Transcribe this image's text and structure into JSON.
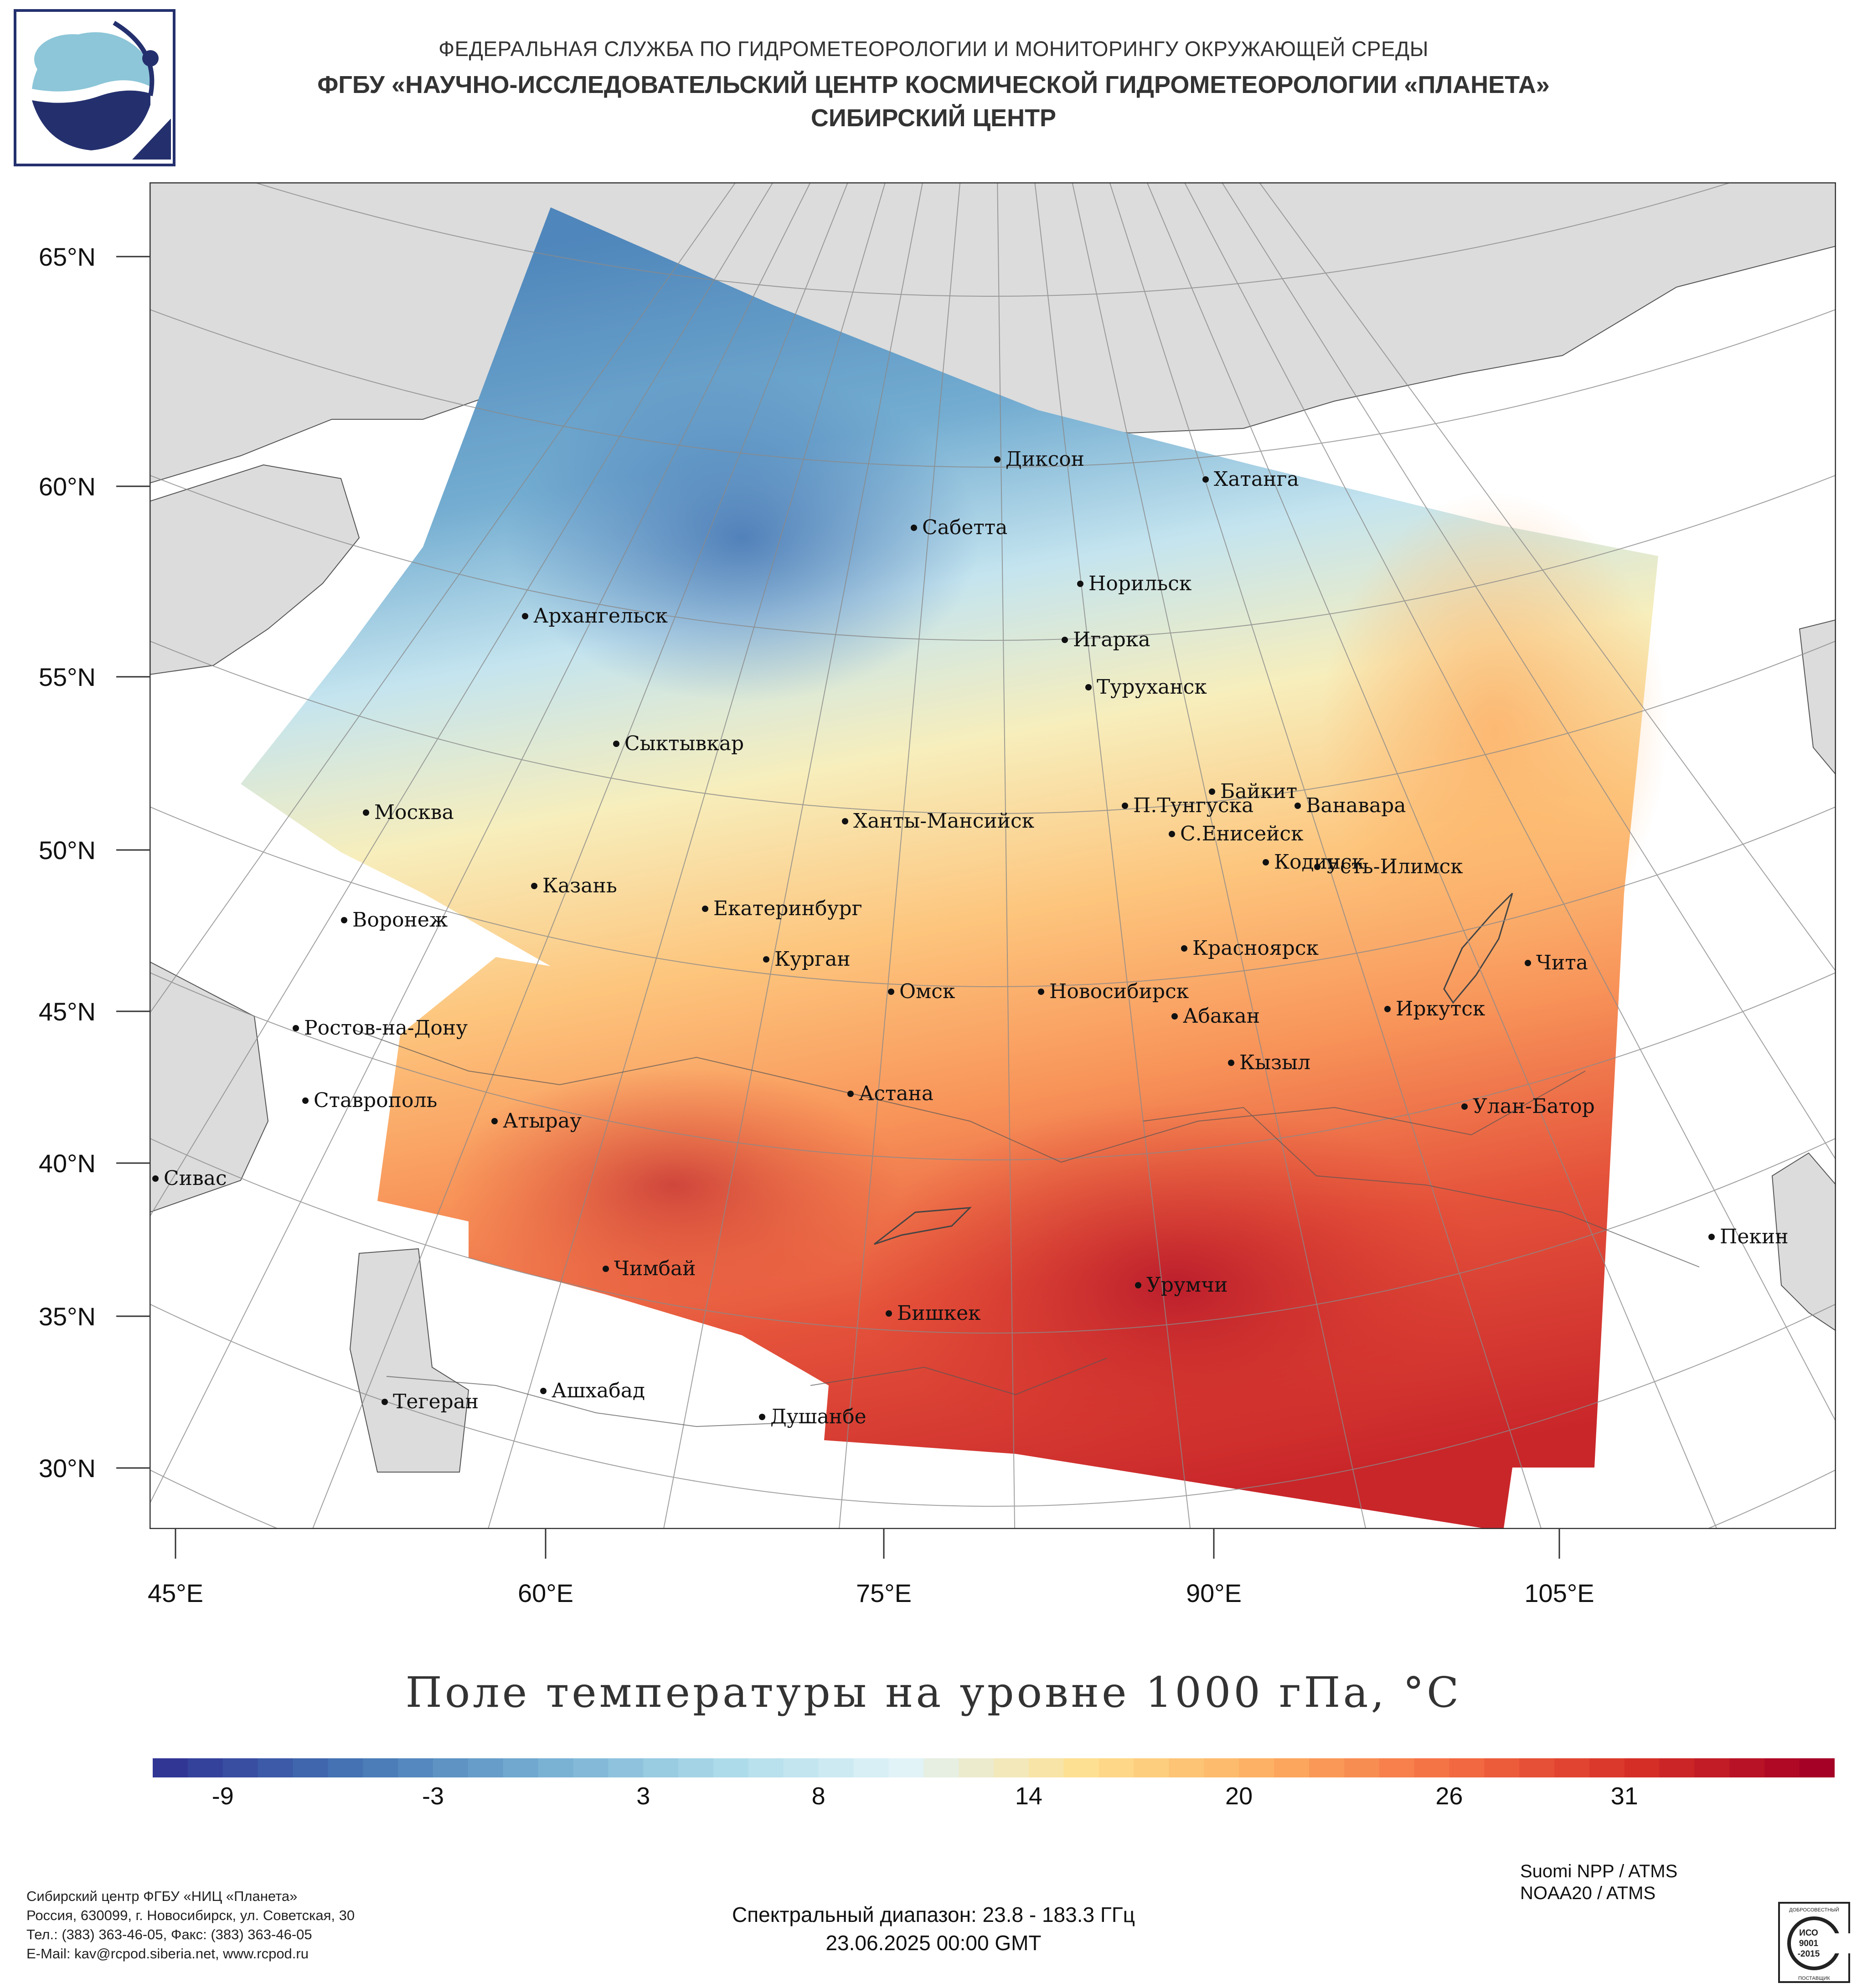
{
  "header": {
    "line1": "ФЕДЕРАЛЬНАЯ СЛУЖБА ПО ГИДРОМЕТЕОРОЛОГИИ И МОНИТОРИНГУ ОКРУЖАЮЩЕЙ СРЕДЫ",
    "line2": "ФГБУ «НАУЧНО-ИССЛЕДОВАТЕЛЬСКИЙ ЦЕНТР КОСМИЧЕСКОЙ ГИДРОМЕТЕОРОЛОГИИ «ПЛАНЕТА»",
    "line3": "СИБИРСКИЙ ЦЕНТР"
  },
  "map": {
    "lat_labels": [
      "65°N",
      "60°N",
      "55°N",
      "50°N",
      "45°N",
      "40°N",
      "35°N",
      "30°N"
    ],
    "lon_labels": [
      "45°E",
      "60°E",
      "75°E",
      "90°E",
      "105°E"
    ],
    "cities": [
      {
        "name": "Диксон"
      },
      {
        "name": "Хатанга"
      },
      {
        "name": "Сабетта"
      },
      {
        "name": "Норильск"
      },
      {
        "name": "Архангельск"
      },
      {
        "name": "Игарка"
      },
      {
        "name": "Туруханск"
      },
      {
        "name": "Сыктывкар"
      },
      {
        "name": "Байкит"
      },
      {
        "name": "П.Тунгуска"
      },
      {
        "name": "Ванавара"
      },
      {
        "name": "Москва"
      },
      {
        "name": "Ханты-Мансийск"
      },
      {
        "name": "С.Енисейск"
      },
      {
        "name": "Кодинск"
      },
      {
        "name": "Усть-Илимск"
      },
      {
        "name": "Казань"
      },
      {
        "name": "Екатеринбург"
      },
      {
        "name": "Воронеж"
      },
      {
        "name": "Красноярск"
      },
      {
        "name": "Чита"
      },
      {
        "name": "Курган"
      },
      {
        "name": "Омск"
      },
      {
        "name": "Новосибирск"
      },
      {
        "name": "Иркутск"
      },
      {
        "name": "Абакан"
      },
      {
        "name": "Ростов-на-Дону"
      },
      {
        "name": "Кызыл"
      },
      {
        "name": "Ставрополь"
      },
      {
        "name": "Астана"
      },
      {
        "name": "Улан-Батор"
      },
      {
        "name": "Атырау"
      },
      {
        "name": "Сивас"
      },
      {
        "name": "Пекин"
      },
      {
        "name": "Чимбай"
      },
      {
        "name": "Урумчи"
      },
      {
        "name": "Бишкек"
      },
      {
        "name": "Ашхабад"
      },
      {
        "name": "Тегеран"
      },
      {
        "name": "Душанбе"
      }
    ]
  },
  "colorbar": {
    "title": "Поле температуры на уровне 1000 гПа, °C",
    "labels": [
      "-9",
      "-3",
      "3",
      "8",
      "14",
      "20",
      "26",
      "31"
    ],
    "range": [
      -11,
      37
    ],
    "colors": [
      "#313695",
      "#4575b4",
      "#74add1",
      "#abd9e9",
      "#e0f3f8",
      "#fee090",
      "#fdae61",
      "#f46d43",
      "#d73027",
      "#a50026"
    ]
  },
  "footer": {
    "left": [
      "Сибирский центр ФГБУ «НИЦ «Планета»",
      "Россия, 630099, г. Новосибирск, ул. Советская, 30",
      "Тел.: (383) 363-46-05, Факс: (383) 363-46-05",
      "E-Mail: kav@rcpod.siberia.net, www.rcpod.ru"
    ],
    "center": [
      "Спектральный диапазон: 23.8 - 183.3 ГГц",
      "23.06.2025 00:00 GMT"
    ],
    "right": [
      "Suomi NPP / ATMS",
      "NOAA20 / ATMS"
    ],
    "iso": {
      "top": "ДОБРОСОВЕСТНЫЙ",
      "l1": "ИСО",
      "l2": "9001",
      "l3": "-2015",
      "bottom": "ПОСТАВЩИК"
    }
  }
}
